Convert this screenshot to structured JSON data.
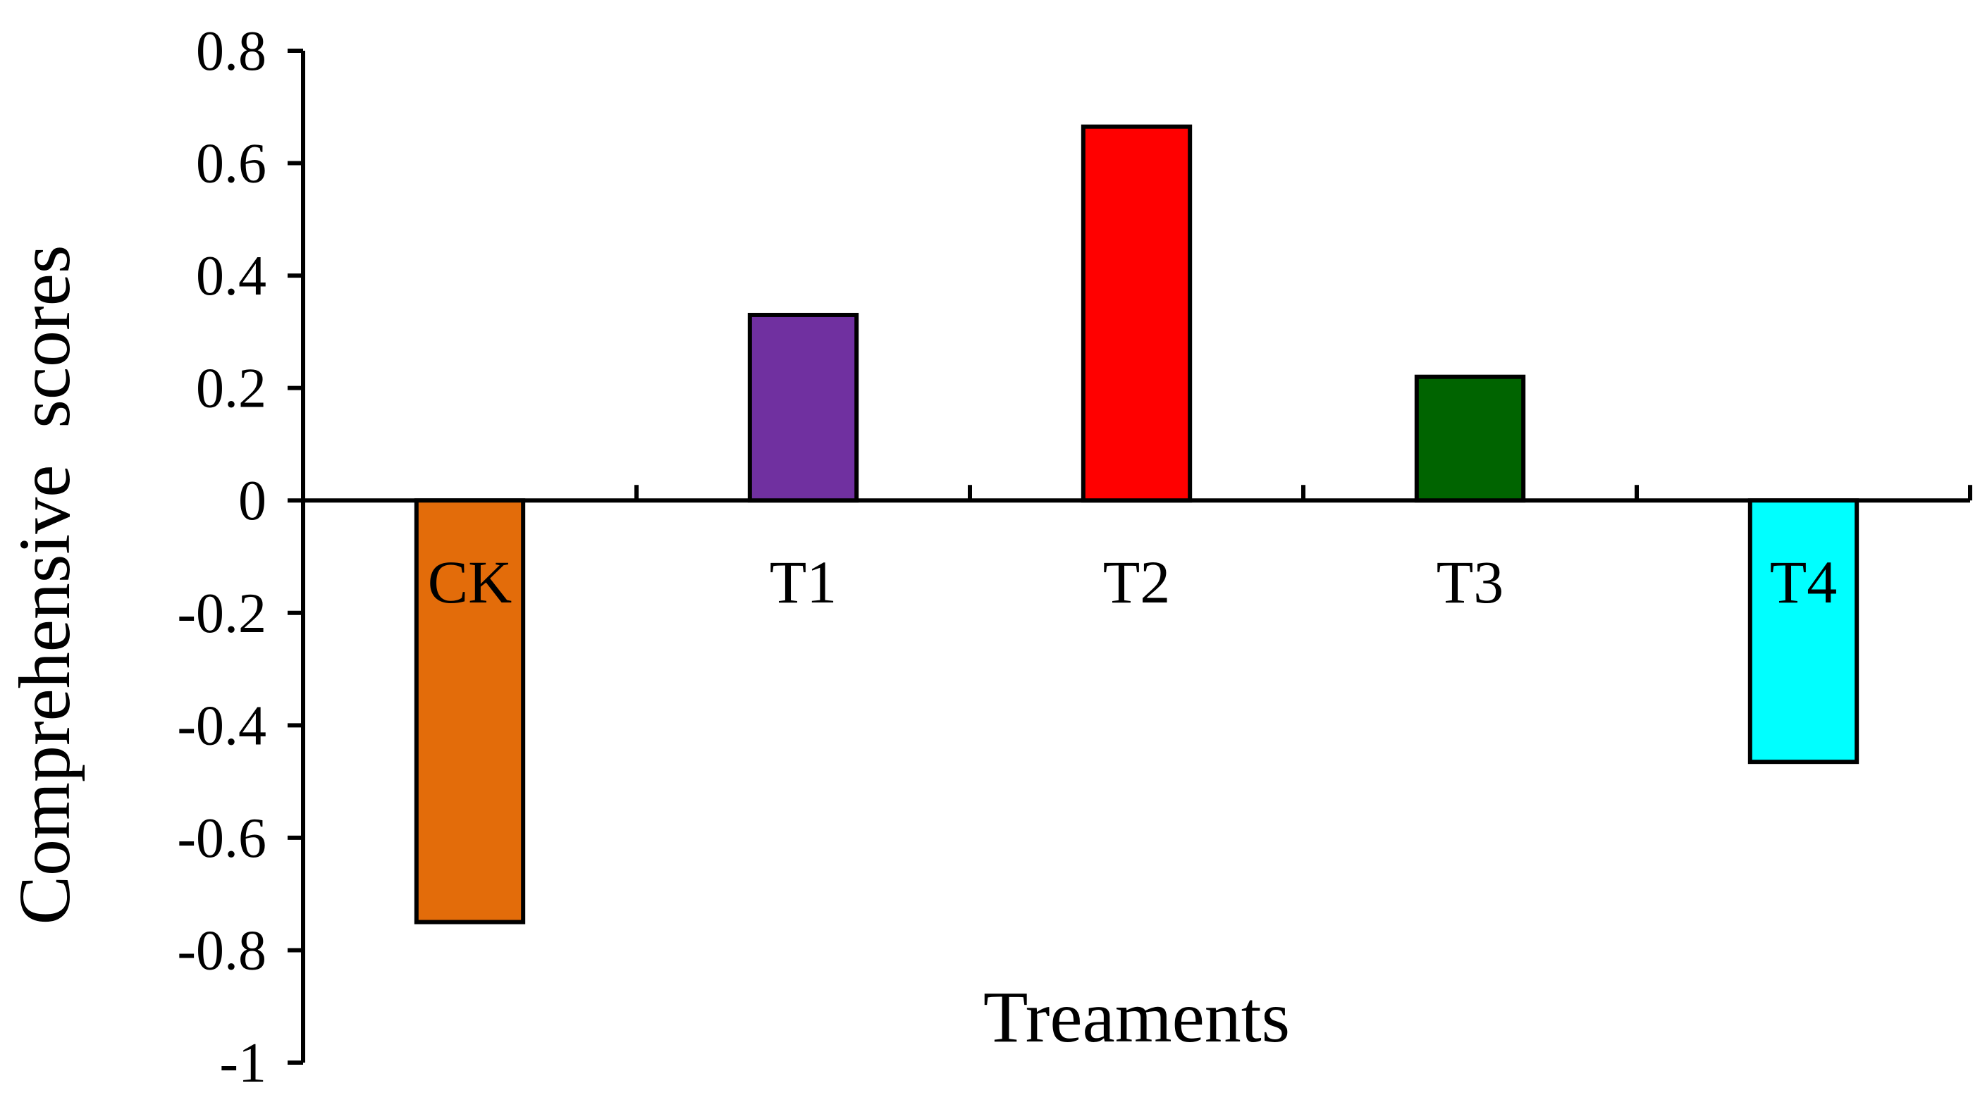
{
  "chart_data": {
    "type": "bar",
    "title": "",
    "xlabel": "Treaments",
    "ylabel": "Comprehensive  scores",
    "ylim": [
      -1,
      0.8
    ],
    "ytick_step": 0.2,
    "yticks": [
      "0.8",
      "0.6",
      "0.4",
      "0.2",
      "0",
      "-0.2",
      "-0.4",
      "-0.6",
      "-0.8",
      "-1"
    ],
    "grid": false,
    "legend": "none",
    "categories": [
      "CK",
      "T1",
      "T2",
      "T3",
      "T4"
    ],
    "values": [
      -0.75,
      0.33,
      0.665,
      0.22,
      -0.465
    ],
    "colors": [
      "#e36c0a",
      "#7030a0",
      "#ff0000",
      "#006400",
      "#00ffff"
    ]
  }
}
